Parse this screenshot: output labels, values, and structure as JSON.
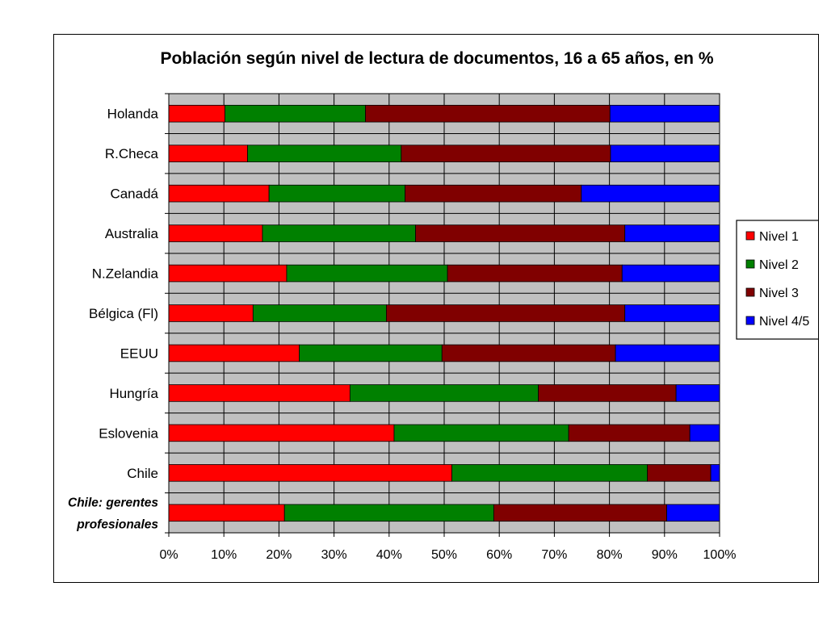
{
  "chart_data": {
    "type": "bar",
    "orientation": "horizontal",
    "stacked": "percent",
    "title": "Población según nivel de lectura de documentos, 16 a 65 años, en %",
    "categories": [
      "Holanda",
      "R.Checa",
      "Canadá",
      "Australia",
      "N.Zelandia",
      "Bélgica (Fl)",
      "EEUU",
      "Hungría",
      "Eslovenia",
      "Chile",
      "Chile: gerentes profesionales"
    ],
    "categories_lines": [
      [
        "Holanda"
      ],
      [
        "R.Checa"
      ],
      [
        "Canadá"
      ],
      [
        "Australia"
      ],
      [
        "N.Zelandia"
      ],
      [
        "Bélgica (Fl)"
      ],
      [
        "EEUU"
      ],
      [
        "Hungría"
      ],
      [
        "Eslovenia"
      ],
      [
        "Chile"
      ],
      [
        "Chile: gerentes",
        "profesionales"
      ]
    ],
    "highlight_category_index": 10,
    "series": [
      {
        "name": "Nivel 1",
        "color": "#ff0000",
        "values": [
          10.2,
          14.3,
          18.2,
          17.0,
          21.4,
          15.3,
          23.7,
          32.9,
          40.9,
          51.4,
          21.0
        ]
      },
      {
        "name": "Nivel 2",
        "color": "#008000",
        "values": [
          25.5,
          27.9,
          24.7,
          27.8,
          29.2,
          24.2,
          25.9,
          34.2,
          31.7,
          35.5,
          38.0
        ]
      },
      {
        "name": "Nivel 3",
        "color": "#800000",
        "values": [
          44.4,
          38.0,
          32.0,
          38.0,
          31.7,
          43.3,
          31.5,
          25.0,
          22.0,
          11.5,
          31.4
        ]
      },
      {
        "name": "Nivel 4/5",
        "color": "#0000ff",
        "values": [
          19.9,
          19.8,
          25.1,
          17.2,
          17.7,
          17.2,
          18.9,
          7.9,
          5.4,
          1.6,
          9.6
        ]
      }
    ],
    "xlim": [
      0,
      100
    ],
    "x_ticks": [
      "0%",
      "10%",
      "20%",
      "30%",
      "40%",
      "50%",
      "60%",
      "70%",
      "80%",
      "90%",
      "100%"
    ],
    "grid": true,
    "plot_background": "#c0c0c0",
    "legend": {
      "position": "right"
    }
  }
}
